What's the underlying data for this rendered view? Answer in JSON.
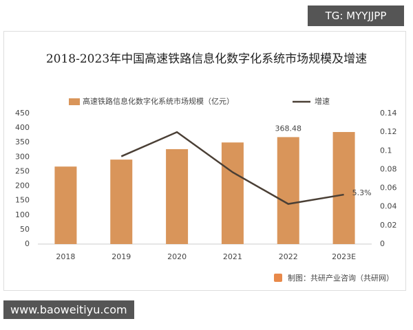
{
  "chart_data": {
    "type": "bar",
    "title": "2018-2023年中国高速铁路信息化数字化系统市场规模及增速",
    "categories": [
      "2018",
      "2019",
      "2020",
      "2021",
      "2022",
      "2023E"
    ],
    "series": [
      {
        "name": "高速铁路信息化数字化系统市场规模（亿元）",
        "type": "bar",
        "color": "#d9955a",
        "values": [
          267,
          291,
          327,
          350,
          368.48,
          386
        ]
      },
      {
        "name": "增速",
        "type": "line",
        "axis": "y2",
        "color": "#4a3f35",
        "values": [
          null,
          0.094,
          0.12,
          0.077,
          0.043,
          0.053
        ],
        "value_labels": [
          null,
          null,
          null,
          null,
          null,
          "5.3%"
        ]
      }
    ],
    "ylim": [
      0,
      450
    ],
    "yticks": [
      0,
      50,
      100,
      150,
      200,
      250,
      300,
      350,
      400,
      450
    ],
    "y2lim": [
      0,
      0.14
    ],
    "y2ticks": [
      0,
      0.02,
      0.04,
      0.06,
      0.08,
      0.1,
      0.12,
      0.14
    ],
    "legend": "top",
    "source": "制图：共研产业咨询（共研网）"
  },
  "overlay": {
    "tag": "TG: MYYJJPP",
    "site": "www.baoweitiyu.com"
  }
}
